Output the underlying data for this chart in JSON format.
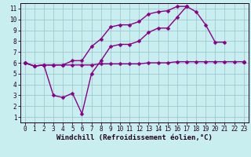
{
  "xlabel": "Windchill (Refroidissement éolien,°C)",
  "bg_color": "#c8eef0",
  "grid_color": "#a0c8d0",
  "line_color": "#880088",
  "xlim": [
    -0.5,
    23.5
  ],
  "ylim": [
    0.5,
    11.5
  ],
  "xticks": [
    0,
    1,
    2,
    3,
    4,
    5,
    6,
    7,
    8,
    9,
    10,
    11,
    12,
    13,
    14,
    15,
    16,
    17,
    18,
    19,
    20,
    21,
    22,
    23
  ],
  "yticks": [
    1,
    2,
    3,
    4,
    5,
    6,
    7,
    8,
    9,
    10,
    11
  ],
  "line1_x": [
    0,
    1,
    2,
    3,
    4,
    5,
    6,
    7,
    8,
    9,
    10,
    11,
    12,
    13,
    14,
    15,
    16,
    17,
    18,
    19,
    20,
    21,
    22,
    23
  ],
  "line1_y": [
    6.0,
    5.7,
    5.8,
    5.8,
    5.8,
    5.8,
    5.8,
    5.8,
    5.9,
    5.9,
    5.9,
    5.9,
    5.9,
    6.0,
    6.0,
    6.0,
    6.1,
    6.1,
    6.1,
    6.1,
    6.1,
    6.1,
    6.1,
    6.1
  ],
  "line2_x": [
    0,
    1,
    2,
    3,
    4,
    5,
    6,
    7,
    8,
    9,
    10,
    11,
    12,
    13,
    14,
    15,
    16,
    17,
    18,
    19,
    20,
    21,
    22,
    23
  ],
  "line2_y": [
    6.0,
    5.7,
    5.8,
    3.0,
    2.8,
    3.2,
    1.3,
    5.0,
    6.2,
    7.5,
    7.7,
    7.7,
    8.0,
    8.8,
    9.2,
    9.2,
    10.2,
    11.2,
    10.7,
    9.5,
    7.9,
    7.9,
    null,
    6.1
  ],
  "line3_x": [
    0,
    1,
    2,
    3,
    4,
    5,
    6,
    7,
    8,
    9,
    10,
    11,
    12,
    13,
    14,
    15,
    16,
    17,
    18,
    19,
    20,
    21,
    22,
    23
  ],
  "line3_y": [
    6.0,
    5.7,
    5.8,
    5.8,
    5.8,
    6.2,
    6.2,
    7.5,
    8.2,
    9.3,
    9.5,
    9.5,
    9.8,
    10.5,
    10.7,
    10.8,
    11.2,
    11.2,
    null,
    null,
    null,
    null,
    null,
    6.1
  ],
  "marker": "D",
  "markersize": 2.5,
  "linewidth": 1.0,
  "xlabel_fontsize": 6.5,
  "tick_fontsize": 5.5,
  "font_family": "monospace"
}
